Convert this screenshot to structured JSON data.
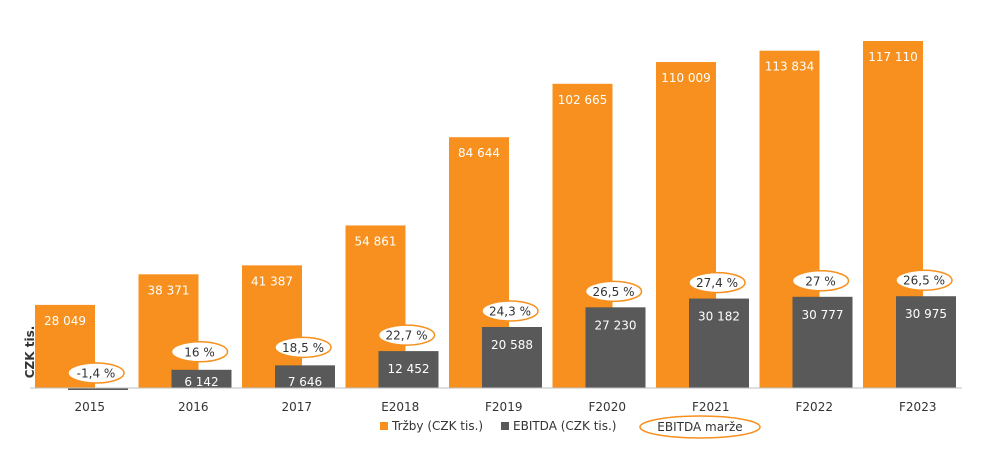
{
  "chart_data": {
    "type": "bar",
    "title": "",
    "xlabel": "",
    "ylabel": "CZK tis.",
    "categories": [
      "2015",
      "2016",
      "2017",
      "E2018",
      "F2019",
      "F2020",
      "F2021",
      "F2022",
      "F2023"
    ],
    "series": [
      {
        "name": "Tržby (CZK tis.)",
        "color": "#F7901E",
        "values": [
          28049,
          38371,
          41387,
          54861,
          84644,
          102665,
          110009,
          113834,
          117110
        ],
        "labels": [
          "28 049",
          "38 371",
          "41 387",
          "54 861",
          "84 644",
          "102 665",
          "110 009",
          "113 834",
          "117 110"
        ]
      },
      {
        "name": "EBITDA (CZK tis.)",
        "color": "#595959",
        "values": [
          -400,
          6142,
          7646,
          12452,
          20588,
          27230,
          30182,
          30777,
          30975
        ],
        "labels": [
          "",
          "6 142",
          "7 646",
          "12 452",
          "20 588",
          "27 230",
          "30 182",
          "30 777",
          "30 975"
        ]
      }
    ],
    "margin_series": {
      "name": "EBITDA marže",
      "outline_color": "#F7901E",
      "values": [
        -1.4,
        16,
        18.5,
        22.7,
        24.3,
        26.5,
        27.4,
        27,
        26.5
      ],
      "labels": [
        "-1,4 %",
        "16 %",
        "18,5 %",
        "22,7 %",
        "24,3 %",
        "26,5 %",
        "27,4 %",
        "27 %",
        "26,5 %"
      ]
    },
    "ylim": [
      0,
      120000
    ],
    "grid": false,
    "legend_placement": "bottom-center"
  }
}
